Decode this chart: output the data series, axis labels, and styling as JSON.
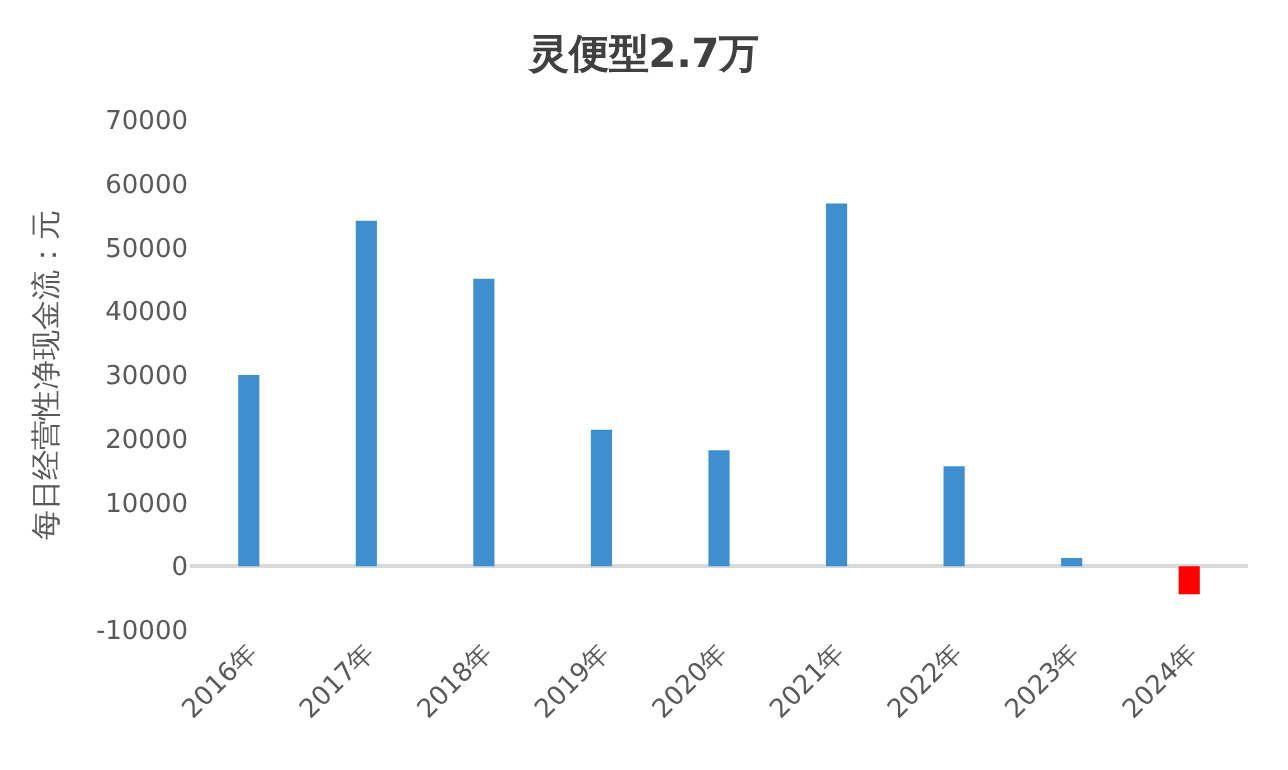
{
  "chart_data": {
    "type": "bar",
    "title": "灵便型2.7万",
    "ylabel": "每日经营性净现金流：元",
    "categories": [
      "2016年",
      "2017年",
      "2018年",
      "2019年",
      "2020年",
      "2021年",
      "2022年",
      "2023年",
      "2024年"
    ],
    "values": [
      30000,
      54200,
      45100,
      21400,
      18200,
      56900,
      15700,
      1300,
      -4400
    ],
    "colors": [
      "#3f8fcf",
      "#3f8fcf",
      "#3f8fcf",
      "#3f8fcf",
      "#3f8fcf",
      "#3f8fcf",
      "#3f8fcf",
      "#3f8fcf",
      "#ff0000"
    ],
    "ylim": [
      -10000,
      70000
    ],
    "yticks": [
      -10000,
      0,
      10000,
      20000,
      30000,
      40000,
      50000,
      60000,
      70000
    ]
  }
}
